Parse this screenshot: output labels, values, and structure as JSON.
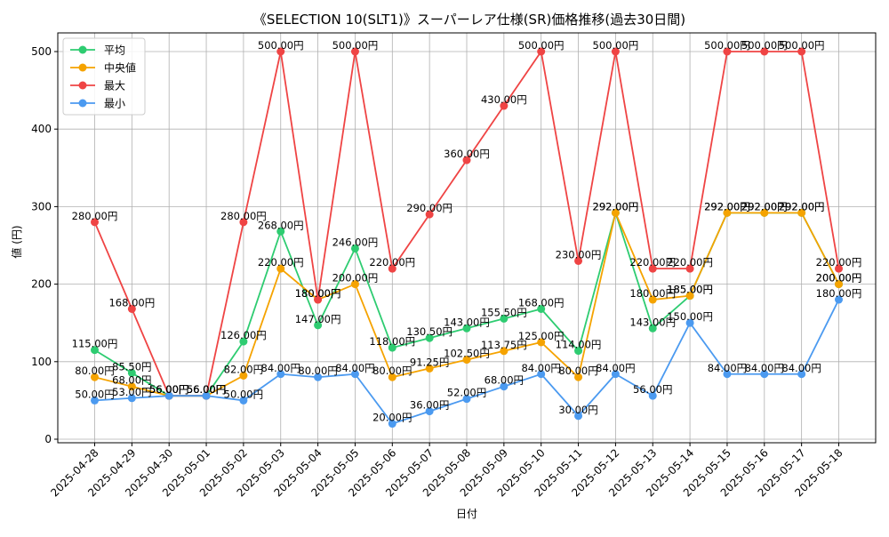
{
  "chart_data": {
    "type": "line",
    "title": "《SELECTION 10(SLT1)》スーパーレア仕様(SR)価格推移(過去30日間)",
    "xlabel": "日付",
    "ylabel": "値 (円)",
    "ylim": [
      0,
      520
    ],
    "yticks": [
      0,
      100,
      200,
      300,
      400,
      500
    ],
    "grid": true,
    "legend_position": "top-left",
    "categories": [
      "2025-04-28",
      "2025-04-29",
      "2025-04-30",
      "2025-05-01",
      "2025-05-02",
      "2025-05-03",
      "2025-05-04",
      "2025-05-05",
      "2025-05-06",
      "2025-05-07",
      "2025-05-08",
      "2025-05-09",
      "2025-05-10",
      "2025-05-11",
      "2025-05-12",
      "2025-05-13",
      "2025-05-14",
      "2025-05-15",
      "2025-05-16",
      "2025-05-17",
      "2025-05-18"
    ],
    "series": [
      {
        "name": "平均",
        "color": "#2ecc71",
        "values": [
          115.0,
          85.5,
          56.0,
          56.0,
          126.0,
          268.0,
          147.0,
          246.0,
          118.0,
          130.5,
          143.0,
          155.5,
          168.0,
          114.0,
          292.0,
          143.0,
          185.0,
          292.0,
          292.0,
          292.0,
          200.0
        ]
      },
      {
        "name": "中央値",
        "color": "#f5a300",
        "values": [
          80.0,
          68.0,
          56.0,
          56.0,
          82.0,
          220.0,
          180.0,
          200.0,
          80.0,
          91.25,
          102.5,
          113.75,
          125.0,
          80.0,
          292.0,
          180.0,
          185.0,
          292.0,
          292.0,
          292.0,
          200.0
        ]
      },
      {
        "name": "最大",
        "color": "#ef4444",
        "values": [
          280.0,
          168.0,
          56.0,
          56.0,
          280.0,
          500.0,
          180.0,
          500.0,
          220.0,
          290.0,
          360.0,
          430.0,
          500.0,
          230.0,
          500.0,
          220.0,
          220.0,
          500.0,
          500.0,
          500.0,
          220.0
        ]
      },
      {
        "name": "最小",
        "color": "#4b9af0",
        "values": [
          50.0,
          53.0,
          56.0,
          56.0,
          50.0,
          84.0,
          80.0,
          84.0,
          20.0,
          36.0,
          52.0,
          68.0,
          84.0,
          30.0,
          84.0,
          56.0,
          150.0,
          84.0,
          84.0,
          84.0,
          180.0
        ]
      }
    ],
    "value_suffix": "円"
  }
}
